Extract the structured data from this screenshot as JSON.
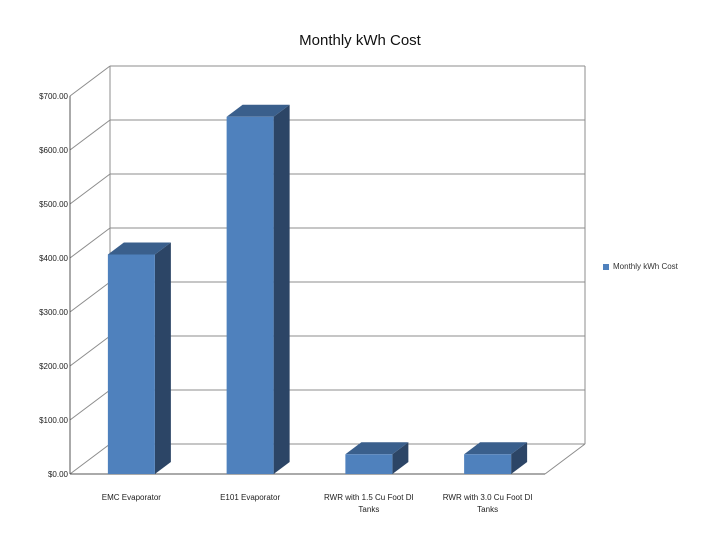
{
  "chart_data": {
    "type": "bar",
    "title": "Monthly kWh Cost",
    "categories": [
      "EMC Evaporator",
      "E101 Evaporator",
      "RWR with 1.5 Cu Foot DI Tanks",
      "RWR with 3.0 Cu Foot DI Tanks"
    ],
    "category_lines": [
      [
        "EMC Evaporator"
      ],
      [
        "E101 Evaporator"
      ],
      [
        "RWR with 1.5 Cu Foot DI",
        "Tanks"
      ],
      [
        "RWR with 3.0 Cu Foot DI",
        "Tanks"
      ]
    ],
    "series": [
      {
        "name": "Monthly kWh Cost",
        "values": [
          425,
          680,
          55,
          55
        ]
      }
    ],
    "ylim": [
      0,
      700
    ],
    "yticks": [
      0,
      100,
      200,
      300,
      400,
      500,
      600,
      700
    ],
    "ytick_labels": [
      "$0.00",
      "$100.00",
      "$200.00",
      "$300.00",
      "$400.00",
      "$500.00",
      "$600.00",
      "$700.00"
    ],
    "xlabel": "",
    "ylabel": "",
    "legend_position": "right",
    "grid": true,
    "three_d": true,
    "colors": {
      "bar_front": "#4F81BD",
      "bar_side": "#2C4566",
      "bar_top": "#3A5F8C",
      "grid": "#8C8C8C"
    }
  }
}
